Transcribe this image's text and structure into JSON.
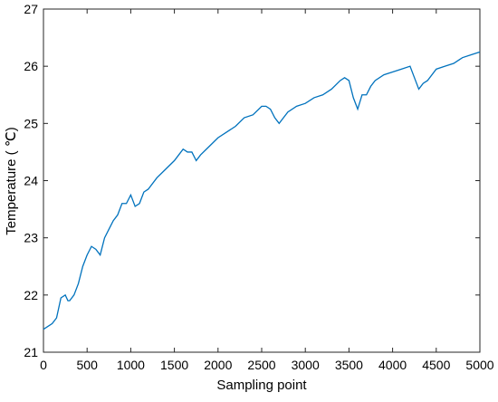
{
  "chart_data": {
    "type": "line",
    "xlabel": "Sampling point",
    "ylabel": "Temperature ( ℃)",
    "x": [
      0,
      100,
      150,
      200,
      250,
      280,
      300,
      350,
      400,
      450,
      500,
      550,
      600,
      650,
      700,
      750,
      800,
      850,
      900,
      950,
      1000,
      1050,
      1100,
      1150,
      1200,
      1300,
      1400,
      1500,
      1550,
      1600,
      1650,
      1700,
      1750,
      1800,
      1900,
      2000,
      2100,
      2200,
      2300,
      2400,
      2500,
      2550,
      2600,
      2650,
      2700,
      2750,
      2800,
      2900,
      3000,
      3100,
      3200,
      3300,
      3400,
      3450,
      3500,
      3550,
      3600,
      3650,
      3700,
      3750,
      3800,
      3900,
      4000,
      4100,
      4200,
      4250,
      4300,
      4350,
      4400,
      4500,
      4600,
      4700,
      4800,
      4900,
      5000
    ],
    "series": [
      {
        "name": "Temperature",
        "color": "#0072bd",
        "values": [
          21.4,
          21.5,
          21.6,
          21.95,
          22.0,
          21.9,
          21.9,
          22.0,
          22.2,
          22.5,
          22.7,
          22.85,
          22.8,
          22.7,
          23.0,
          23.15,
          23.3,
          23.4,
          23.6,
          23.6,
          23.75,
          23.55,
          23.6,
          23.8,
          23.85,
          24.05,
          24.2,
          24.35,
          24.45,
          24.55,
          24.5,
          24.5,
          24.35,
          24.45,
          24.6,
          24.75,
          24.85,
          24.95,
          25.1,
          25.15,
          25.3,
          25.3,
          25.25,
          25.1,
          25.0,
          25.1,
          25.2,
          25.3,
          25.35,
          25.45,
          25.5,
          25.6,
          25.75,
          25.8,
          25.75,
          25.45,
          25.25,
          25.5,
          25.5,
          25.65,
          25.75,
          25.85,
          25.9,
          25.95,
          26.0,
          25.8,
          25.6,
          25.7,
          25.75,
          25.95,
          26.0,
          26.05,
          26.15,
          26.2,
          26.25
        ]
      }
    ],
    "xlim": [
      0,
      5000
    ],
    "xticks": [
      0,
      500,
      1000,
      1500,
      2000,
      2500,
      3000,
      3500,
      4000,
      4500,
      5000
    ],
    "ylim": [
      21,
      27
    ],
    "yticks": [
      21,
      22,
      23,
      24,
      25,
      26,
      27
    ],
    "grid": false
  }
}
